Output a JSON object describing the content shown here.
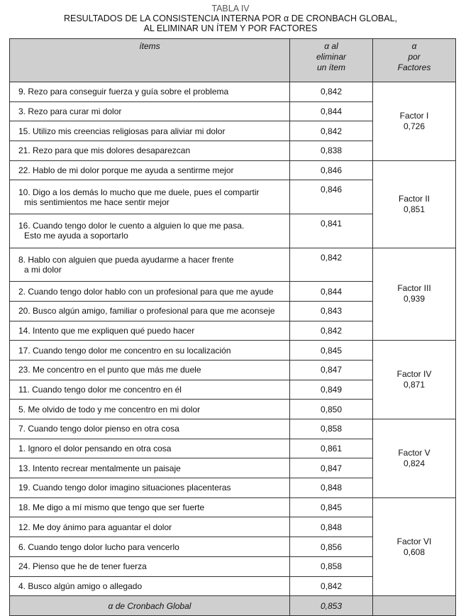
{
  "title": {
    "label": "TABLA IV",
    "line1": "RESULTADOS DE LA CONSISTENCIA INTERNA POR α DE CRONBACH GLOBAL,",
    "line2": "AL ELIMINAR UN ÍTEM Y POR FACTORES"
  },
  "headers": {
    "items": "ítems",
    "alpha_item": [
      "α al",
      "eliminar",
      "un ítem"
    ],
    "alpha_factor": [
      "α",
      "por",
      "Factores"
    ]
  },
  "groups": [
    {
      "factor": "Factor I",
      "alpha": "0,726",
      "rows": [
        {
          "text": "9. Rezo para conseguir fuerza y guía sobre el problema",
          "value": "0,842"
        },
        {
          "text": "3. Rezo para curar mi dolor",
          "value": "0,844"
        },
        {
          "text": "15. Utilizo mis creencias religiosas para aliviar mi dolor",
          "value": "0,842"
        },
        {
          "text": "21. Rezo para que mis dolores desaparezcan",
          "value": "0,838"
        }
      ]
    },
    {
      "factor": "Factor II",
      "alpha": "0,851",
      "rows": [
        {
          "text": "22. Hablo de mi dolor porque me ayuda a sentirme mejor",
          "value": "0,846"
        },
        {
          "text": "10. Digo a los demás lo mucho que me duele, pues el compartir",
          "text2": "mis sentimientos me hace sentir mejor",
          "value": "0,846"
        },
        {
          "text": "16. Cuando tengo dolor le cuento a alguien lo que me pasa.",
          "text2": "Esto me ayuda a soportarlo",
          "value": "0,841"
        }
      ]
    },
    {
      "factor": "Factor III",
      "alpha": "0,939",
      "rows": [
        {
          "text": "8. Hablo con alguien que pueda ayudarme a hacer frente",
          "text2": "a mi dolor",
          "value": "0,842"
        },
        {
          "text": "2. Cuando tengo dolor hablo con un profesional para que me ayude",
          "value": "0,844"
        },
        {
          "text": "20. Busco algún amigo, familiar o profesional para que me aconseje",
          "value": "0,843"
        },
        {
          "text": "14. Intento que me expliquen qué puedo hacer",
          "value": "0,842"
        }
      ]
    },
    {
      "factor": "Factor IV",
      "alpha": "0,871",
      "rows": [
        {
          "text": "17. Cuando tengo dolor me concentro en su localización",
          "value": "0,845"
        },
        {
          "text": "23. Me concentro en el punto que más me duele",
          "value": "0,847"
        },
        {
          "text": "11. Cuando tengo dolor me concentro en él",
          "value": "0,849"
        },
        {
          "text": "5. Me olvido de todo y me concentro en mi dolor",
          "value": "0,850"
        }
      ]
    },
    {
      "factor": "Factor V",
      "alpha": "0,824",
      "rows": [
        {
          "text": "7. Cuando tengo dolor pienso en otra cosa",
          "value": "0,858"
        },
        {
          "text": "1. Ignoro el dolor pensando en otra cosa",
          "value": "0,861"
        },
        {
          "text": "13. Intento recrear mentalmente un paisaje",
          "value": "0,847"
        },
        {
          "text": "19. Cuando tengo dolor imagino situaciones placenteras",
          "value": "0,848"
        }
      ]
    },
    {
      "factor": "Factor VI",
      "alpha": "0,608",
      "rows": [
        {
          "text": "18. Me digo a mí mismo que tengo que ser fuerte",
          "value": "0,845"
        },
        {
          "text": "12. Me doy ánimo para aguantar el dolor",
          "value": "0,848"
        },
        {
          "text": "6. Cuando tengo dolor lucho para vencerlo",
          "value": "0,856"
        },
        {
          "text": "24. Pienso que he de tener fuerza",
          "value": "0,858"
        },
        {
          "text": "4. Busco algún amigo o allegado",
          "value": "0,842"
        }
      ]
    }
  ],
  "footer": {
    "label": "α de Cronbach Global",
    "value": "0,853"
  }
}
